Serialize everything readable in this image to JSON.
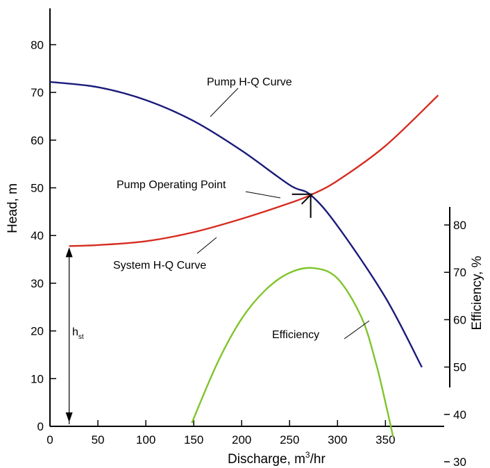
{
  "chart_data": {
    "type": "line",
    "title": "",
    "xlabel_main": "Discharge, m",
    "xlabel_sup": "3",
    "xlabel_tail": "/hr",
    "ylabel": "Head, m",
    "y2label": "Efficiency, %",
    "xlim": [
      0,
      400
    ],
    "ylim": [
      0,
      90
    ],
    "y2lim": [
      23,
      90
    ],
    "xticks": [
      0,
      50,
      100,
      150,
      200,
      250,
      300,
      350
    ],
    "yticks": [
      0,
      10,
      20,
      30,
      40,
      50,
      60,
      70,
      80
    ],
    "y2ticks": [
      30,
      40,
      50,
      60,
      70,
      80
    ],
    "grid": false,
    "series": [
      {
        "name": "Pump H-Q Curve",
        "axis": "head",
        "color": "#1a1a7a",
        "x": [
          0,
          50,
          100,
          150,
          200,
          250,
          272,
          300,
          350,
          388
        ],
        "y": [
          72.2,
          71.1,
          68.4,
          64.0,
          57.8,
          50.6,
          48.5,
          42.0,
          27.0,
          12.4
        ]
      },
      {
        "name": "System H-Q Curve",
        "axis": "head",
        "color": "#d62b1f",
        "x": [
          20,
          50,
          100,
          150,
          200,
          250,
          272,
          300,
          350,
          405
        ],
        "y": [
          37.8,
          38.0,
          38.8,
          40.7,
          43.5,
          46.8,
          48.5,
          51.5,
          58.8,
          69.4
        ]
      },
      {
        "name": "Efficiency",
        "axis": "efficiency",
        "color": "#7fc42a",
        "x": [
          148,
          175,
          200,
          225,
          250,
          275,
          300,
          325,
          340,
          350,
          358
        ],
        "y": [
          38.2,
          51.0,
          60.2,
          66.3,
          69.9,
          70.9,
          68.7,
          60.5,
          50.9,
          42.5,
          35.3
        ]
      }
    ],
    "annotations": {
      "pump_curve": "Pump H-Q Curve",
      "system_curve": "System H-Q Curve",
      "operating_point": "Pump Operating Point",
      "efficiency": "Efficiency",
      "static_head_main": "h",
      "static_head_sub": "st"
    },
    "operating_point": {
      "x": 272,
      "y": 48.5
    },
    "static_head": {
      "x": 20,
      "from": 0,
      "to": 37.8
    }
  }
}
